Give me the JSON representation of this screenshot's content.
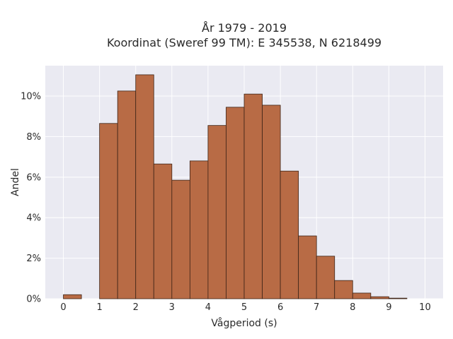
{
  "chart_data": {
    "type": "bar",
    "title_line1": "År 1979 - 2019",
    "title_line2": "Koordinat (Sweref 99 TM): E 345538, N 6218499",
    "xlabel": "Vågperiod (s)",
    "ylabel": "Andel",
    "bin_width": 0.5,
    "bins": [
      {
        "x": 0.0,
        "value": 0.2
      },
      {
        "x": 0.5,
        "value": 0.0
      },
      {
        "x": 1.0,
        "value": 8.65
      },
      {
        "x": 1.5,
        "value": 10.25
      },
      {
        "x": 2.0,
        "value": 11.05
      },
      {
        "x": 2.5,
        "value": 6.65
      },
      {
        "x": 3.0,
        "value": 5.85
      },
      {
        "x": 3.5,
        "value": 6.8
      },
      {
        "x": 4.0,
        "value": 8.55
      },
      {
        "x": 4.5,
        "value": 9.45
      },
      {
        "x": 5.0,
        "value": 10.1
      },
      {
        "x": 5.5,
        "value": 9.55
      },
      {
        "x": 6.0,
        "value": 6.3
      },
      {
        "x": 6.5,
        "value": 3.1
      },
      {
        "x": 7.0,
        "value": 2.1
      },
      {
        "x": 7.5,
        "value": 0.9
      },
      {
        "x": 8.0,
        "value": 0.28
      },
      {
        "x": 8.5,
        "value": 0.1
      },
      {
        "x": 9.0,
        "value": 0.03
      }
    ],
    "xlim": [
      -0.5,
      10.5
    ],
    "ylim": [
      0,
      11.5
    ],
    "x_ticks": [
      0,
      1,
      2,
      3,
      4,
      5,
      6,
      7,
      8,
      9,
      10
    ],
    "y_ticks": [
      0,
      2,
      4,
      6,
      8,
      10
    ],
    "y_tick_labels": [
      "0%",
      "2%",
      "4%",
      "6%",
      "8%",
      "10%"
    ],
    "grid": true,
    "colors": {
      "bar_fill": "#b86b45",
      "bar_edge": "#3d2417",
      "plot_bg": "#eaeaf2",
      "grid": "#ffffff"
    }
  }
}
